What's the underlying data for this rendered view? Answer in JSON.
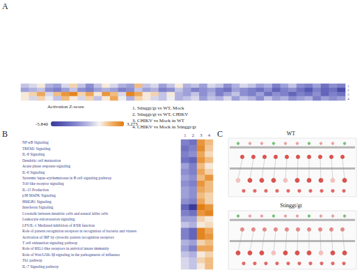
{
  "chart_data": [
    {
      "type": "heatmap",
      "panel": "A",
      "tick_labels": "y",
      "categories": [
        null,
        null,
        null,
        null,
        null,
        null,
        null,
        null,
        null,
        null,
        null,
        null,
        null,
        null,
        null,
        null,
        null,
        null,
        null,
        null,
        null,
        null,
        null,
        null,
        null,
        null,
        null,
        null,
        null,
        null,
        null,
        null,
        null,
        null,
        null,
        null,
        null,
        null,
        null,
        null
      ],
      "rows": [
        "1",
        "2",
        "3",
        "4"
      ],
      "cells": [
        [
          -1,
          -0.5,
          0.5,
          -1.5,
          -2,
          -0.5,
          1,
          -1,
          -2.5,
          -1,
          0.5,
          -0.5,
          -1.5,
          -2,
          1.5,
          -1,
          -0.5,
          -2,
          -1,
          0.5,
          -1.5,
          -1,
          -2,
          -0.5,
          -1,
          -2.5,
          -1.5,
          -0.5,
          -1,
          -2,
          -1.5,
          -3,
          -2,
          -1,
          -2.5,
          -3,
          -2,
          -3.5,
          -2.5,
          -3
        ],
        [
          -2,
          -1.5,
          -1,
          -2.5,
          -3,
          -2,
          -1,
          -2.5,
          -3,
          -2,
          -1.5,
          -2,
          -3,
          -2.5,
          -1,
          -2,
          -1.5,
          -3,
          -2.5,
          -1,
          -2,
          -3,
          -2.5,
          -2,
          -3,
          -3.5,
          -2,
          -2.5,
          -3,
          -3.5,
          -2.5,
          -4,
          -3,
          -2.5,
          -3.5,
          -4.5,
          -3,
          -4,
          -3.5,
          -5
        ],
        [
          0.5,
          1,
          2,
          -0.5,
          1.5,
          2.5,
          3,
          1,
          2,
          0.5,
          2.5,
          1.5,
          -0.5,
          3,
          2,
          0.5,
          1,
          -1,
          0.5,
          -1.5,
          -2,
          -1,
          -2.5,
          -1.5,
          -3,
          -2,
          -1,
          -2.5,
          -3,
          -2,
          -3.5,
          -2.5,
          -3,
          -4,
          -3,
          -3.5,
          -2.5,
          -4,
          -3,
          -3.5
        ],
        [
          0.5,
          -0.5,
          1,
          0,
          -1,
          1.5,
          0.5,
          -0.5,
          1,
          -1,
          0.5,
          2,
          0,
          -1.5,
          1,
          0.5,
          -0.5,
          -1,
          0,
          -1.5,
          -1,
          -0.5,
          -2,
          -1,
          -1.5,
          -0.5,
          -2,
          -1,
          -1.5,
          -2.5,
          -1,
          -2,
          -1.5,
          -2.5,
          -2,
          -1.5,
          -3,
          -2,
          -2.5,
          -2
        ]
      ]
    },
    {
      "type": "heatmap",
      "panel": "B",
      "categories": [
        "1",
        "2",
        "3",
        "4"
      ],
      "rows": [
        "NF-κB Signaling",
        "TREM1 Signaling",
        "IL-8 Signaling",
        "Dendritic cell maturation",
        "Acute phase response signaling",
        "IL-6 Signaling",
        "Systemic lupus erythematosus in B cell signaling pathway",
        "Toll-like receptor signaling",
        "IL-15 Production",
        "p38 MAPK Signaling",
        "HMGB1 Signaling",
        "Interferon Signaling",
        "Crosstalk between dendritic cells and natural killer cells",
        "Leukocyte extravasation signaling",
        "LPS/IL-1 Mediated inhibition of RXR function",
        "Role of pattern recognition receptors in recognition of bacteria and viruses",
        "Activation of IRF by cytosolic pattern recognition receptors",
        "T cell exhaustion signaling pathway",
        "Role of RIG1-like receptors in antiviral innate immunity",
        "Role of Wnt/GSK-3β signaling in the pathogenesis of influenza",
        "Th1 pathway",
        "IL-7 Signaling pathway"
      ],
      "cells": [
        [
          -3,
          -3.5,
          2.5,
          1.5
        ],
        [
          -3.5,
          -3,
          2.8,
          1.2
        ],
        [
          -3,
          -2.5,
          2,
          0.8
        ],
        [
          -3.5,
          -4,
          2.5,
          1.5
        ],
        [
          -2,
          -3,
          1.5,
          0.5
        ],
        [
          -2.5,
          -3,
          2,
          1
        ],
        [
          -2,
          -2.5,
          1.5,
          2.5
        ],
        [
          -2.5,
          -3,
          2.5,
          1.5
        ],
        [
          -2,
          -2.5,
          2,
          1.5
        ],
        [
          -2,
          -2.5,
          1.5,
          1
        ],
        [
          -2.5,
          -3,
          2,
          1
        ],
        [
          -4,
          -5.8,
          3.2,
          2.5
        ],
        [
          -3,
          -3.5,
          2.5,
          3
        ],
        [
          -2,
          -2,
          1,
          0.5
        ],
        [
          -1,
          -1.5,
          0.5,
          0.8
        ],
        [
          -3,
          -4,
          3,
          2
        ],
        [
          -3,
          -4,
          3,
          2.5
        ],
        [
          -1.5,
          -2,
          1,
          1.5
        ],
        [
          -2,
          -3,
          2,
          2
        ],
        [
          -1,
          -1.5,
          0.5,
          1
        ],
        [
          -0.5,
          -1,
          1,
          1.5
        ],
        [
          -0.5,
          -1,
          0.5,
          1.5
        ]
      ]
    }
  ],
  "color_scale": {
    "title": "Activation Z-score",
    "range": [
      -5.84,
      3.273
    ],
    "ticks": [
      {
        "value": -5.84,
        "label": "-5.840"
      },
      3.273
    ]
  },
  "comparisons": [
    "1. Stinggt/gt vs WT, Mock",
    "2. Stinggt/gt vs WT, CHIKV",
    "3. CHIKV vs Mock in WT",
    "4. CHIKV vs Mock in Stinggt/gt"
  ],
  "diagram": {
    "panel": "C",
    "titles": [
      "WT",
      "Stinggt/gt"
    ]
  }
}
